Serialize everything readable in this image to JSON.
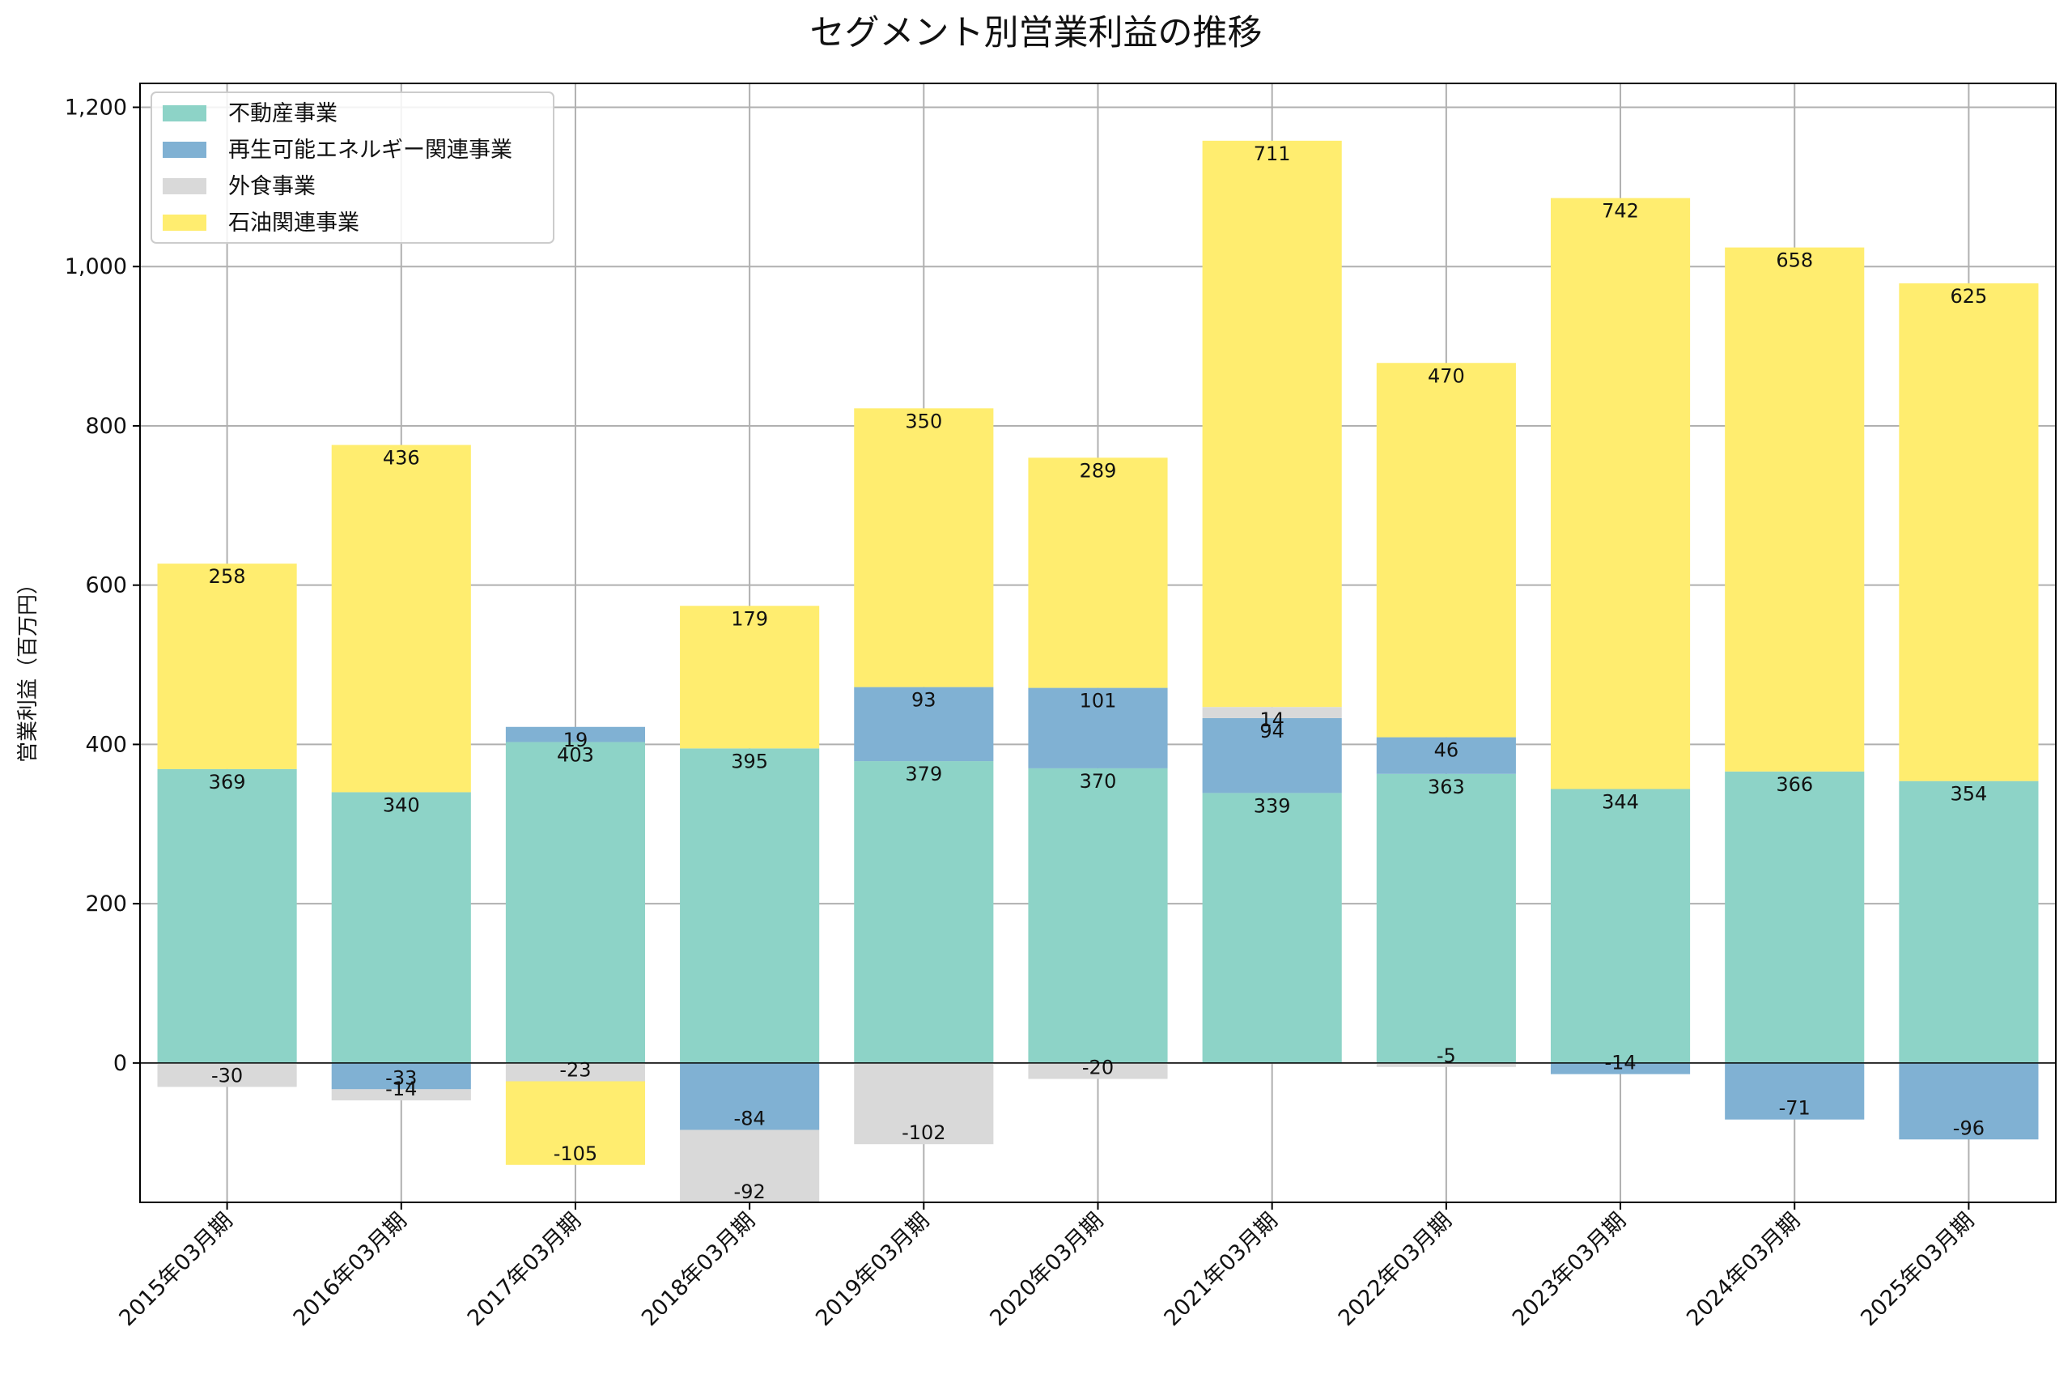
{
  "chart_data": {
    "type": "bar",
    "stacked": true,
    "title": "セグメント別営業利益の推移",
    "xlabel": "",
    "ylabel": "営業利益（百万円）",
    "ylim": [
      -175,
      1230
    ],
    "yticks": [
      0,
      200,
      400,
      600,
      800,
      1000,
      1200
    ],
    "ytick_labels": [
      "0",
      "200",
      "400",
      "600",
      "800",
      "1,000",
      "1,200"
    ],
    "grid": true,
    "legend_position": "top-left",
    "categories": [
      "2015年03月期",
      "2016年03月期",
      "2017年03月期",
      "2018年03月期",
      "2019年03月期",
      "2020年03月期",
      "2021年03月期",
      "2022年03月期",
      "2023年03月期",
      "2024年03月期",
      "2025年03月期"
    ],
    "series": [
      {
        "name": "不動産事業",
        "color": "#8dd3c7",
        "values": [
          369,
          340,
          403,
          395,
          379,
          370,
          339,
          363,
          344,
          366,
          354
        ]
      },
      {
        "name": "再生可能エネルギー関連事業",
        "color": "#80b1d3",
        "values": [
          null,
          -33,
          19,
          -84,
          93,
          101,
          94,
          46,
          -14,
          -71,
          -96
        ]
      },
      {
        "name": "外食事業",
        "color": "#d9d9d9",
        "values": [
          -30,
          -14,
          -23,
          -92,
          -102,
          -20,
          14,
          -5,
          null,
          null,
          null
        ]
      },
      {
        "name": "石油関連事業",
        "color": "#ffed6f",
        "values": [
          258,
          436,
          -105,
          179,
          350,
          289,
          711,
          470,
          742,
          658,
          625
        ]
      }
    ]
  }
}
